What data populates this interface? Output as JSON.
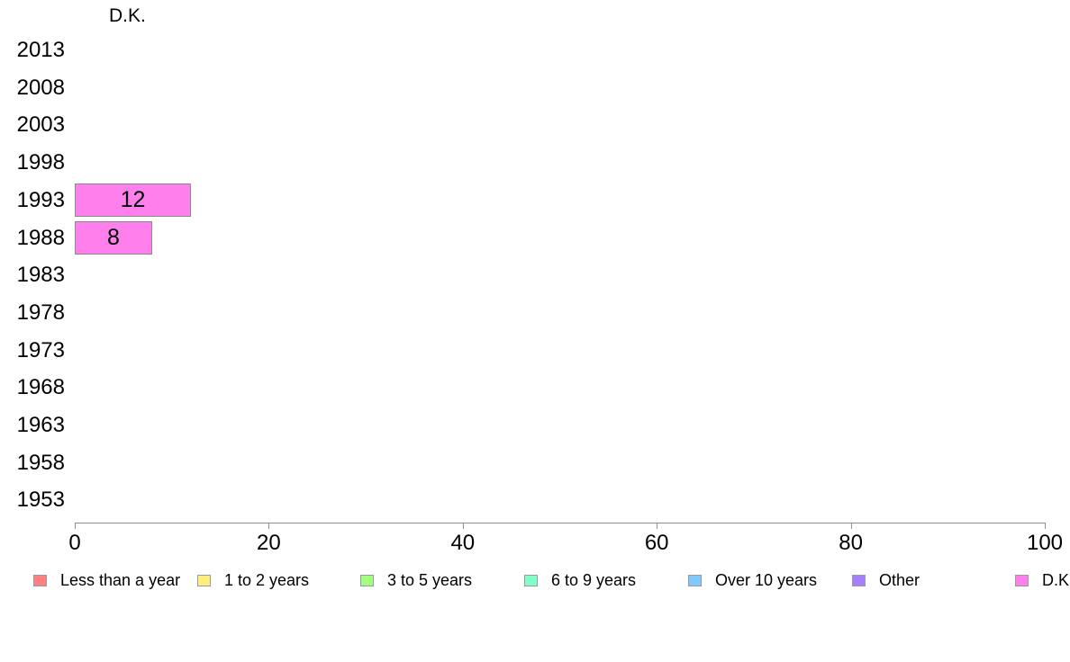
{
  "chart_data": {
    "type": "bar",
    "orientation": "horizontal",
    "title": "D.K.",
    "categories": [
      "2013",
      "2008",
      "2003",
      "1998",
      "1993",
      "1988",
      "1983",
      "1978",
      "1973",
      "1968",
      "1963",
      "1958",
      "1953"
    ],
    "values": [
      0,
      0,
      0,
      0,
      12,
      8,
      0,
      0,
      0,
      0,
      0,
      0,
      0
    ],
    "bar_value_labels": [
      "",
      "",
      "",
      "",
      "12",
      "8",
      "",
      "",
      "",
      "",
      "",
      "",
      ""
    ],
    "bar_color": "#FF80ED",
    "bar_border_color": "#8a8a8a",
    "xlabel": "",
    "ylabel": "",
    "xlim": [
      0,
      100
    ],
    "x_ticks": [
      0,
      20,
      40,
      60,
      80,
      100
    ],
    "x_tick_labels": [
      "0",
      "20",
      "40",
      "60",
      "80",
      "100"
    ],
    "grid": false,
    "axis_color": "#8e8e8e",
    "legend_position": "bottom",
    "legend": [
      {
        "label": "Less than a year",
        "color": "#FF8080"
      },
      {
        "label": "1 to 2 years",
        "color": "#FFED80"
      },
      {
        "label": "3 to 5 years",
        "color": "#A4FF80"
      },
      {
        "label": "6 to 9 years",
        "color": "#80FFC9"
      },
      {
        "label": "Over 10 years",
        "color": "#80C9FF"
      },
      {
        "label": "Other",
        "color": "#A480FF"
      },
      {
        "label": "D.K.",
        "color": "#FF80ED"
      }
    ]
  }
}
